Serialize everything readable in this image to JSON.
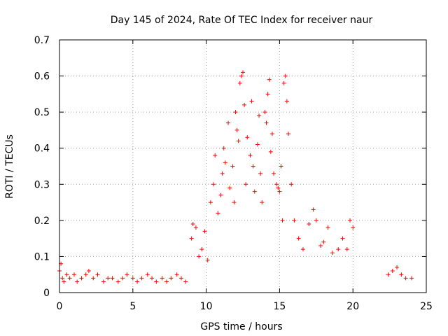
{
  "chart_data": {
    "type": "scatter",
    "title": "Day 145 of 2024, Rate Of TEC Index for receiver naur",
    "xlabel": "GPS time / hours",
    "ylabel": "ROTI / TECUs",
    "xlim": [
      0,
      25
    ],
    "ylim": [
      0,
      0.7
    ],
    "xticks": [
      0,
      5,
      10,
      15,
      20,
      25
    ],
    "yticks": [
      0,
      0.1,
      0.2,
      0.3,
      0.4,
      0.5,
      0.6,
      0.7
    ],
    "xtick_labels": [
      "0",
      "5",
      "10",
      "15",
      "20",
      "25"
    ],
    "ytick_labels": [
      "0",
      "0.1",
      "0.2",
      "0.3",
      "0.4",
      "0.5",
      "0.6",
      "0.7"
    ],
    "grid": true,
    "marker": "plus",
    "color": "#ff0000",
    "series": [
      {
        "x": [
          0.0,
          0.1,
          0.2,
          0.3,
          0.5,
          0.7,
          1.0,
          1.2,
          1.5,
          1.8,
          2.0,
          2.3,
          2.6,
          3.0,
          3.3,
          3.6,
          4.0,
          4.3,
          4.6,
          5.0,
          5.3,
          5.6,
          6.0,
          6.3,
          6.6,
          7.0,
          7.3,
          7.6,
          8.0,
          8.3,
          8.6,
          9.0,
          9.1,
          9.3,
          9.5,
          9.7,
          9.9,
          10.1,
          10.3,
          10.5,
          10.6,
          10.8,
          11.0,
          11.1,
          11.2,
          11.3,
          11.5,
          11.6,
          11.8,
          11.9,
          12.0,
          12.1,
          12.2,
          12.3,
          12.4,
          12.5,
          12.6,
          12.7,
          12.8,
          13.0,
          13.1,
          13.2,
          13.3,
          13.5,
          13.6,
          13.7,
          13.8,
          14.0,
          14.1,
          14.2,
          14.3,
          14.4,
          14.5,
          14.6,
          14.8,
          14.9,
          15.0,
          15.1,
          15.2,
          15.3,
          15.4,
          15.5,
          15.6,
          15.8,
          16.0,
          16.3,
          16.6,
          17.0,
          17.3,
          17.5,
          17.8,
          18.0,
          18.3,
          18.6,
          19.0,
          19.3,
          19.6,
          19.8,
          20.0,
          22.4,
          22.7,
          23.0,
          23.3,
          23.6,
          24.0
        ],
        "y": [
          0.06,
          0.08,
          0.04,
          0.03,
          0.05,
          0.04,
          0.05,
          0.03,
          0.04,
          0.05,
          0.06,
          0.04,
          0.05,
          0.03,
          0.04,
          0.04,
          0.03,
          0.04,
          0.05,
          0.04,
          0.03,
          0.04,
          0.05,
          0.04,
          0.03,
          0.04,
          0.03,
          0.04,
          0.05,
          0.04,
          0.03,
          0.15,
          0.19,
          0.18,
          0.1,
          0.12,
          0.17,
          0.09,
          0.25,
          0.3,
          0.38,
          0.22,
          0.27,
          0.33,
          0.4,
          0.36,
          0.47,
          0.29,
          0.35,
          0.25,
          0.5,
          0.45,
          0.42,
          0.58,
          0.6,
          0.61,
          0.52,
          0.3,
          0.43,
          0.38,
          0.53,
          0.35,
          0.28,
          0.41,
          0.49,
          0.33,
          0.25,
          0.5,
          0.47,
          0.55,
          0.59,
          0.39,
          0.44,
          0.33,
          0.3,
          0.29,
          0.28,
          0.35,
          0.2,
          0.58,
          0.6,
          0.53,
          0.44,
          0.3,
          0.2,
          0.15,
          0.12,
          0.19,
          0.23,
          0.2,
          0.13,
          0.14,
          0.18,
          0.11,
          0.12,
          0.15,
          0.12,
          0.2,
          0.18,
          0.05,
          0.06,
          0.07,
          0.05,
          0.04,
          0.04
        ]
      }
    ]
  }
}
